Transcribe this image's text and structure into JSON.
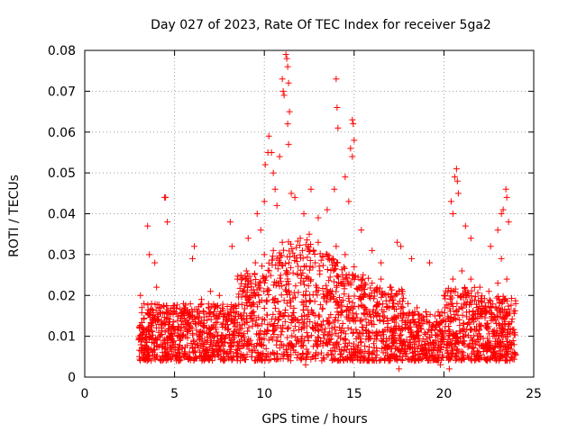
{
  "chart_data": {
    "type": "scatter",
    "title": "Day 027 of 2023, Rate Of TEC Index for receiver 5ga2",
    "xlabel": "GPS time / hours",
    "ylabel": "ROTI / TECUs",
    "xlim": [
      0,
      25
    ],
    "ylim": [
      0,
      0.08
    ],
    "x_ticks": [
      "0",
      "5",
      "10",
      "15",
      "20",
      "25"
    ],
    "y_ticks": [
      "0",
      "0.01",
      "0.02",
      "0.03",
      "0.04",
      "0.05",
      "0.06",
      "0.07",
      "0.08"
    ],
    "grid": true,
    "marker": "+",
    "color": "#ff0000",
    "x_range_of_data": [
      3.0,
      24.0
    ],
    "points": [
      [
        4.45,
        0.044
      ],
      [
        4.5,
        0.044
      ],
      [
        4.6,
        0.038
      ],
      [
        3.5,
        0.037
      ],
      [
        3.6,
        0.03
      ],
      [
        3.9,
        0.028
      ],
      [
        6.1,
        0.032
      ],
      [
        6.0,
        0.029
      ],
      [
        8.1,
        0.038
      ],
      [
        8.2,
        0.032
      ],
      [
        9.1,
        0.034
      ],
      [
        9.6,
        0.04
      ],
      [
        9.8,
        0.036
      ],
      [
        10.0,
        0.043
      ],
      [
        10.05,
        0.052
      ],
      [
        10.2,
        0.055
      ],
      [
        10.25,
        0.059
      ],
      [
        10.4,
        0.055
      ],
      [
        10.5,
        0.05
      ],
      [
        10.6,
        0.046
      ],
      [
        10.7,
        0.042
      ],
      [
        10.85,
        0.054
      ],
      [
        11.0,
        0.073
      ],
      [
        11.05,
        0.07
      ],
      [
        11.1,
        0.069
      ],
      [
        11.2,
        0.079
      ],
      [
        11.25,
        0.078
      ],
      [
        11.3,
        0.076
      ],
      [
        11.35,
        0.072
      ],
      [
        11.4,
        0.065
      ],
      [
        11.3,
        0.062
      ],
      [
        11.35,
        0.057
      ],
      [
        11.5,
        0.045
      ],
      [
        11.7,
        0.044
      ],
      [
        12.6,
        0.046
      ],
      [
        12.2,
        0.04
      ],
      [
        13.0,
        0.039
      ],
      [
        13.5,
        0.041
      ],
      [
        13.9,
        0.046
      ],
      [
        14.0,
        0.073
      ],
      [
        14.05,
        0.066
      ],
      [
        14.1,
        0.061
      ],
      [
        14.5,
        0.049
      ],
      [
        14.8,
        0.056
      ],
      [
        14.9,
        0.063
      ],
      [
        14.95,
        0.062
      ],
      [
        15.0,
        0.058
      ],
      [
        14.9,
        0.054
      ],
      [
        14.7,
        0.043
      ],
      [
        15.4,
        0.036
      ],
      [
        16.0,
        0.031
      ],
      [
        16.5,
        0.028
      ],
      [
        17.4,
        0.033
      ],
      [
        17.6,
        0.032
      ],
      [
        18.2,
        0.029
      ],
      [
        19.2,
        0.028
      ],
      [
        20.4,
        0.043
      ],
      [
        20.5,
        0.04
      ],
      [
        20.6,
        0.049
      ],
      [
        20.7,
        0.051
      ],
      [
        20.75,
        0.048
      ],
      [
        20.8,
        0.045
      ],
      [
        21.2,
        0.037
      ],
      [
        21.5,
        0.034
      ],
      [
        22.6,
        0.032
      ],
      [
        23.0,
        0.036
      ],
      [
        23.2,
        0.04
      ],
      [
        23.3,
        0.041
      ],
      [
        23.45,
        0.046
      ],
      [
        23.5,
        0.044
      ],
      [
        23.6,
        0.038
      ],
      [
        23.2,
        0.029
      ],
      [
        3.1,
        0.02
      ],
      [
        3.3,
        0.018
      ],
      [
        4.0,
        0.022
      ],
      [
        5.0,
        0.016
      ],
      [
        5.5,
        0.018
      ],
      [
        6.5,
        0.019
      ],
      [
        7.0,
        0.021
      ],
      [
        7.5,
        0.02
      ],
      [
        8.5,
        0.024
      ],
      [
        9.0,
        0.026
      ],
      [
        9.5,
        0.028
      ],
      [
        10.0,
        0.03
      ],
      [
        10.5,
        0.031
      ],
      [
        11.0,
        0.033
      ],
      [
        12.0,
        0.034
      ],
      [
        12.5,
        0.035
      ],
      [
        13.0,
        0.033
      ],
      [
        13.5,
        0.03
      ],
      [
        14.0,
        0.032
      ],
      [
        14.5,
        0.03
      ],
      [
        15.0,
        0.027
      ],
      [
        15.5,
        0.025
      ],
      [
        16.0,
        0.023
      ],
      [
        16.5,
        0.024
      ],
      [
        17.0,
        0.022
      ],
      [
        17.5,
        0.021
      ],
      [
        18.0,
        0.018
      ],
      [
        18.5,
        0.017
      ],
      [
        19.0,
        0.016
      ],
      [
        19.5,
        0.015
      ],
      [
        20.0,
        0.02
      ],
      [
        20.5,
        0.024
      ],
      [
        21.0,
        0.026
      ],
      [
        21.5,
        0.024
      ],
      [
        22.0,
        0.022
      ],
      [
        22.5,
        0.021
      ],
      [
        23.0,
        0.023
      ],
      [
        23.5,
        0.024
      ],
      [
        24.0,
        0.018
      ],
      [
        17.5,
        0.002
      ],
      [
        19.8,
        0.003
      ],
      [
        20.3,
        0.002
      ],
      [
        12.3,
        0.003
      ]
    ]
  }
}
